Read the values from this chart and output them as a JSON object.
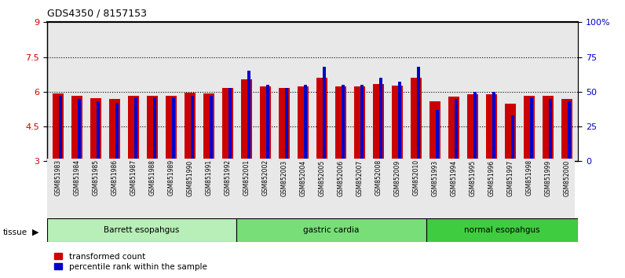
{
  "title": "GDS4350 / 8157153",
  "samples": [
    "GSM851983",
    "GSM851984",
    "GSM851985",
    "GSM851986",
    "GSM851987",
    "GSM851988",
    "GSM851989",
    "GSM851990",
    "GSM851991",
    "GSM851992",
    "GSM852001",
    "GSM852002",
    "GSM852003",
    "GSM852004",
    "GSM852005",
    "GSM852006",
    "GSM852007",
    "GSM852008",
    "GSM852009",
    "GSM852010",
    "GSM851993",
    "GSM851994",
    "GSM851995",
    "GSM851996",
    "GSM851997",
    "GSM851998",
    "GSM851999",
    "GSM852000"
  ],
  "red_values": [
    5.93,
    5.82,
    5.72,
    5.7,
    5.83,
    5.82,
    5.83,
    5.95,
    5.93,
    6.15,
    6.55,
    6.22,
    6.18,
    6.22,
    6.6,
    6.22,
    6.22,
    6.32,
    6.28,
    6.6,
    5.58,
    5.78,
    5.88,
    5.88,
    5.48,
    5.83,
    5.82,
    5.7
  ],
  "blue_percentiles": [
    47,
    45,
    43,
    42,
    46,
    46,
    46,
    47,
    47,
    53,
    65,
    55,
    53,
    55,
    68,
    55,
    55,
    60,
    57,
    68,
    37,
    45,
    50,
    50,
    33,
    46,
    45,
    43
  ],
  "groups": [
    {
      "label": "Barrett esopahgus",
      "start": 0,
      "end": 10,
      "color": "#b8eeb8"
    },
    {
      "label": "gastric cardia",
      "start": 10,
      "end": 20,
      "color": "#78de78"
    },
    {
      "label": "normal esopahgus",
      "start": 20,
      "end": 28,
      "color": "#40cc40"
    }
  ],
  "ylim_left": [
    3,
    9
  ],
  "ylim_right": [
    0,
    100
  ],
  "yticks_left": [
    3,
    4.5,
    6,
    7.5,
    9
  ],
  "yticks_right": [
    0,
    25,
    50,
    75,
    100
  ],
  "ytick_labels_right": [
    "0",
    "25",
    "50",
    "75",
    "100%"
  ],
  "red_color": "#cc0000",
  "blue_color": "#0000cc",
  "legend_red": "transformed count",
  "legend_blue": "percentile rank within the sample",
  "background_color": "#e8e8e8"
}
